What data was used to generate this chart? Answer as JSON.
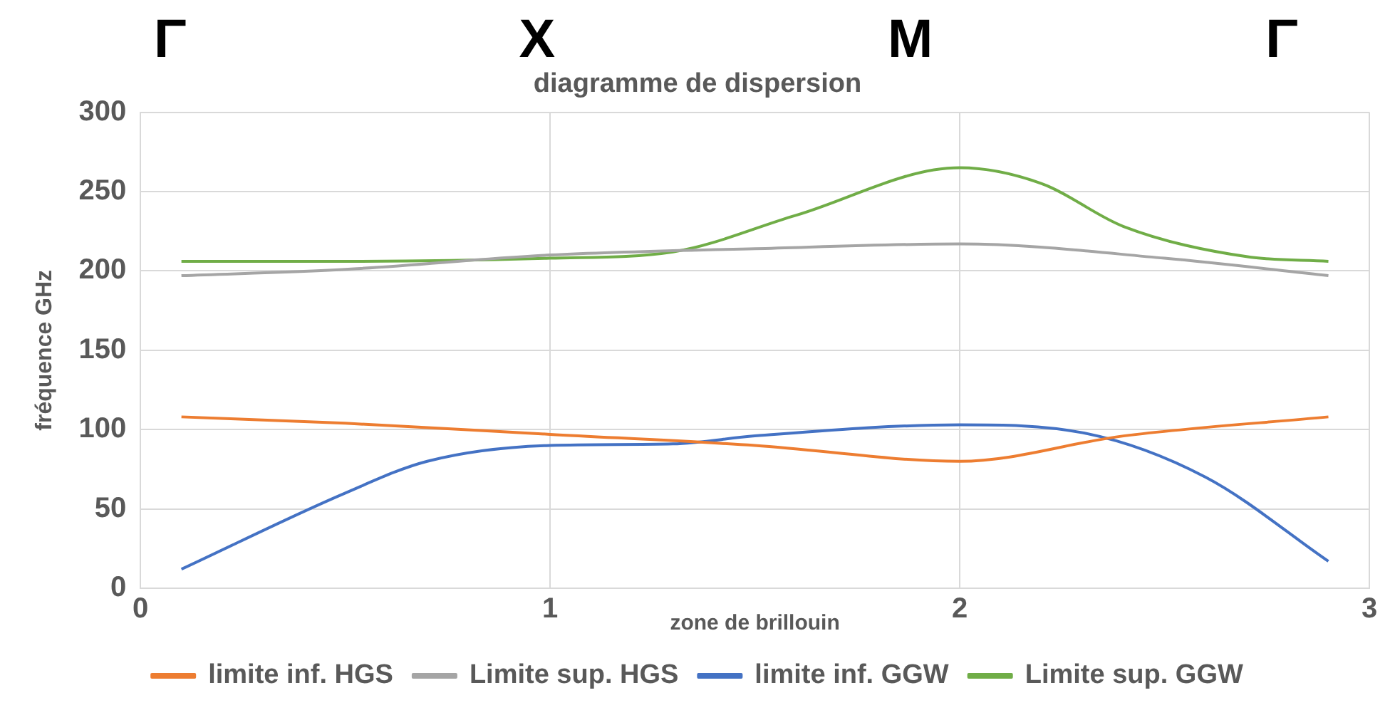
{
  "chart_data": {
    "type": "line",
    "title": "diagramme de dispersion",
    "xlabel": "zone de brillouin",
    "ylabel": "fréquence GHz",
    "xlim": [
      0,
      3
    ],
    "xticks": [
      0,
      1,
      2,
      3
    ],
    "ylim": [
      0,
      300
    ],
    "yticks": [
      0,
      50,
      100,
      150,
      200,
      250,
      300
    ],
    "grid": true,
    "legend": "bottom",
    "marker": "none",
    "series": [
      {
        "name": "limite inf. HGS",
        "color": "#ed7d31",
        "x": [
          0.1,
          0.5,
          1,
          1.5,
          2,
          2.4,
          2.9
        ],
        "values": [
          108,
          104,
          97,
          90,
          80,
          96,
          108
        ]
      },
      {
        "name": "Limite sup. HGS",
        "color": "#a5a5a5",
        "x": [
          0.1,
          0.5,
          1,
          1.5,
          2,
          2.5,
          2.9
        ],
        "values": [
          197,
          201,
          210,
          214,
          217,
          208,
          197
        ]
      },
      {
        "name": "limite inf. GGW",
        "color": "#4472c4",
        "x": [
          0.1,
          0.5,
          0.7,
          1,
          1.3,
          1.5,
          2,
          2.3,
          2.6,
          2.9
        ],
        "values": [
          12,
          60,
          80,
          90,
          91,
          96,
          103,
          98,
          70,
          17
        ]
      },
      {
        "name": "Limite sup. GGW",
        "color": "#70ad47",
        "x": [
          0.1,
          0.5,
          1,
          1.3,
          1.6,
          2,
          2.2,
          2.4,
          2.7,
          2.9
        ],
        "values": [
          206,
          206,
          208,
          212,
          235,
          265,
          255,
          228,
          209,
          206
        ]
      }
    ],
    "annotations": [
      "Γ",
      "X",
      "M",
      "Γ"
    ]
  }
}
